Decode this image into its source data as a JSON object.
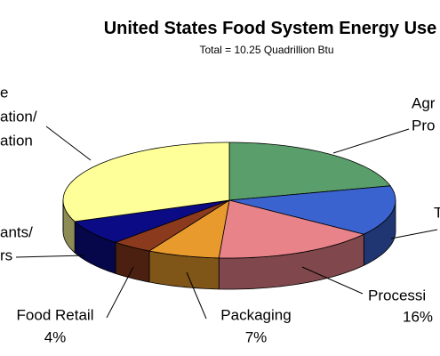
{
  "chart_data": {
    "type": "pie3d",
    "title": "United States Food System Energy Use",
    "subtitle": "Total = 10.25 Quadrillion Btu",
    "categories": [
      [
        "Agr",
        "Pro"
      ],
      [
        "T"
      ],
      [
        "Processi"
      ],
      [
        "Packaging"
      ],
      [
        "Food Retail"
      ],
      [
        "ants/",
        "rs"
      ],
      [
        "e",
        "ation/",
        "ation"
      ]
    ],
    "values": [
      21,
      14,
      16,
      7,
      4,
      7,
      31
    ],
    "value_labels": [
      null,
      null,
      "16%",
      "7%",
      "4%",
      null,
      null
    ],
    "colors": [
      "#5a9e6b",
      "#3b63cf",
      "#e8838a",
      "#e99a2c",
      "#8b3a1e",
      "#0b0b86",
      "#ffff99"
    ]
  }
}
